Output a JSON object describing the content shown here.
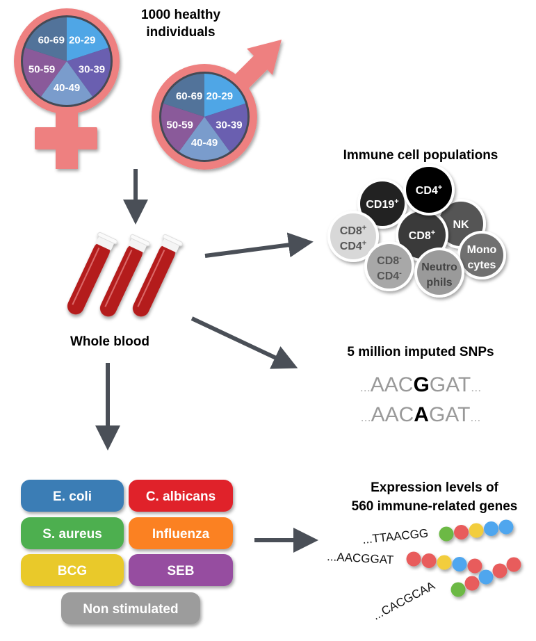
{
  "cohort": {
    "title_line1": "1000 healthy",
    "title_line2": "individuals",
    "age_groups": [
      "20-29",
      "30-39",
      "40-49",
      "50-59",
      "60-69"
    ],
    "age_colors": [
      "#4fa6e6",
      "#6a5fb0",
      "#7a9ccc",
      "#8a5a9a",
      "#52739a"
    ],
    "symbol_color": "#ee8080"
  },
  "sample": {
    "label": "Whole blood",
    "tube_color": "#b41e1e"
  },
  "immune_cells": {
    "title": "Immune cell populations",
    "cells": [
      {
        "line1": "CD19",
        "sup1": "+",
        "line2": "",
        "sup2": "",
        "fill": "#222222",
        "text": "#ffffff"
      },
      {
        "line1": "NK",
        "sup1": "",
        "line2": "",
        "sup2": "",
        "fill": "#555555",
        "text": "#ffffff"
      },
      {
        "line1": "CD8",
        "sup1": "+",
        "line2": "",
        "sup2": "",
        "fill": "#3a3a3a",
        "text": "#ffffff"
      },
      {
        "line1": "CD4",
        "sup1": "+",
        "line2": "",
        "sup2": "",
        "fill": "#000000",
        "text": "#ffffff"
      },
      {
        "line1": "CD8",
        "sup1": "+",
        "line2": "CD4",
        "sup2": "+",
        "fill": "#d8d8d8",
        "text": "#555555"
      },
      {
        "line1": "CD8",
        "sup1": "-",
        "line2": "CD4",
        "sup2": "-",
        "fill": "#a8a8a8",
        "text": "#555555"
      },
      {
        "line1": "Mono",
        "sup1": "",
        "line2": "cytes",
        "sup2": "",
        "fill": "#707070",
        "text": "#ffffff"
      },
      {
        "line1": "Neutro",
        "sup1": "",
        "line2": "phils",
        "sup2": "",
        "fill": "#9a9a9a",
        "text": "#444444"
      }
    ]
  },
  "snps": {
    "title": "5 million imputed SNPs",
    "seq1": {
      "prefix": "...",
      "left": "AAC",
      "variant": "G",
      "right": "GAT",
      "suffix": "..."
    },
    "seq2": {
      "prefix": "...",
      "left": "AAC",
      "variant": "A",
      "right": "GAT",
      "suffix": "..."
    }
  },
  "stimuli": [
    {
      "label": "E. coli",
      "color": "#3a7db5"
    },
    {
      "label": "C. albicans",
      "color": "#e0232a"
    },
    {
      "label": "S. aureus",
      "color": "#4daf4f"
    },
    {
      "label": "Influenza",
      "color": "#fb8124"
    },
    {
      "label": "BCG",
      "color": "#e9c92c"
    },
    {
      "label": "SEB",
      "color": "#964ea0"
    },
    {
      "label": "Non stimulated",
      "color": "#9c9c9c"
    }
  ],
  "expression": {
    "title_line1": "Expression levels of",
    "title_line2": "560 immune-related genes",
    "rows": [
      {
        "seq": "...TTAACGG",
        "beads": [
          "#6cb944",
          "#e85b5b",
          "#f2cd3c",
          "#4fa6ee",
          "#4fa6ee"
        ]
      },
      {
        "seq": "...AACGGAT",
        "beads": [
          "#e85b5b",
          "#e85b5b",
          "#f2cd3c",
          "#4fa6ee",
          "#e85b5b"
        ]
      },
      {
        "seq": "...CACGCAA",
        "beads": [
          "#6cb944",
          "#e85b5b",
          "#4fa6ee",
          "#e85b5b",
          "#e85b5b"
        ]
      }
    ]
  },
  "arrow_color": "#4a4f57"
}
